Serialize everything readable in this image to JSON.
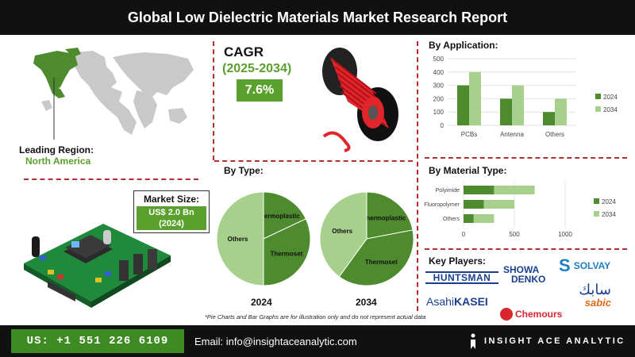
{
  "title": "Global Low Dielectric Materials Market Research Report",
  "leading_region": {
    "label": "Leading Region:",
    "value": "North America"
  },
  "market_size": {
    "label": "Market Size:",
    "value_line1": "US$ 2.0 Bn",
    "value_line2": "(2024)"
  },
  "cagr": {
    "label": "CAGR",
    "period": "(2025-2034)",
    "value": "7.6%"
  },
  "by_type": {
    "title": "By Type:",
    "year_left": "2024",
    "year_right": "2034"
  },
  "by_application": {
    "title": "By Application:"
  },
  "by_material": {
    "title": "By Material Type:"
  },
  "key_players": {
    "title": "Key Players:",
    "logos": [
      "HUNTSMAN",
      "SHOWA",
      "DENKO",
      "SOLVAY",
      "Asahi",
      "KASEI",
      "سابك",
      "sabic",
      "Chemours"
    ]
  },
  "disclaimer": "*Pie Charts and Bar Graphs are for illustration only and do not represent actual data",
  "footer": {
    "phone": "US: +1 551 226 6109",
    "email": "Email: info@insightaceanalytic.com",
    "brand": "INSIGHT ACE ANALYTIC"
  },
  "colors": {
    "dark_green": "#4e8a2e",
    "light_green": "#a8d08d",
    "accent_green": "#5aa02c",
    "dash_red": "#b03030"
  },
  "chart_data": [
    {
      "type": "pie",
      "title": "2024",
      "slices": [
        {
          "label": "Thermoplastic",
          "value": 18
        },
        {
          "label": "Thermoset",
          "value": 32
        },
        {
          "label": "Others",
          "value": 50
        }
      ]
    },
    {
      "type": "pie",
      "title": "2034",
      "slices": [
        {
          "label": "Thermoplastic",
          "value": 22
        },
        {
          "label": "Thermoset",
          "value": 38
        },
        {
          "label": "Others",
          "value": 40
        }
      ]
    },
    {
      "type": "bar",
      "title": "By Application:",
      "categories": [
        "PCBs",
        "Antenna",
        "Others"
      ],
      "series": [
        {
          "name": "2024",
          "values": [
            300,
            200,
            100
          ]
        },
        {
          "name": "2034",
          "values": [
            400,
            300,
            200
          ]
        }
      ],
      "ylim": [
        0,
        500
      ],
      "yticks": [
        0,
        100,
        200,
        300,
        400,
        500
      ],
      "legend": "right"
    },
    {
      "type": "bar",
      "orientation": "horizontal",
      "stacked": true,
      "title": "By Material Type:",
      "categories": [
        "Polyimide",
        "Fluoropolymer",
        "Others"
      ],
      "series": [
        {
          "name": "2024",
          "values": [
            300,
            200,
            100
          ]
        },
        {
          "name": "2034",
          "values": [
            400,
            300,
            200
          ]
        }
      ],
      "xlim": [
        0,
        1000
      ],
      "xticks": [
        0,
        500,
        1000
      ],
      "legend": "right"
    }
  ]
}
